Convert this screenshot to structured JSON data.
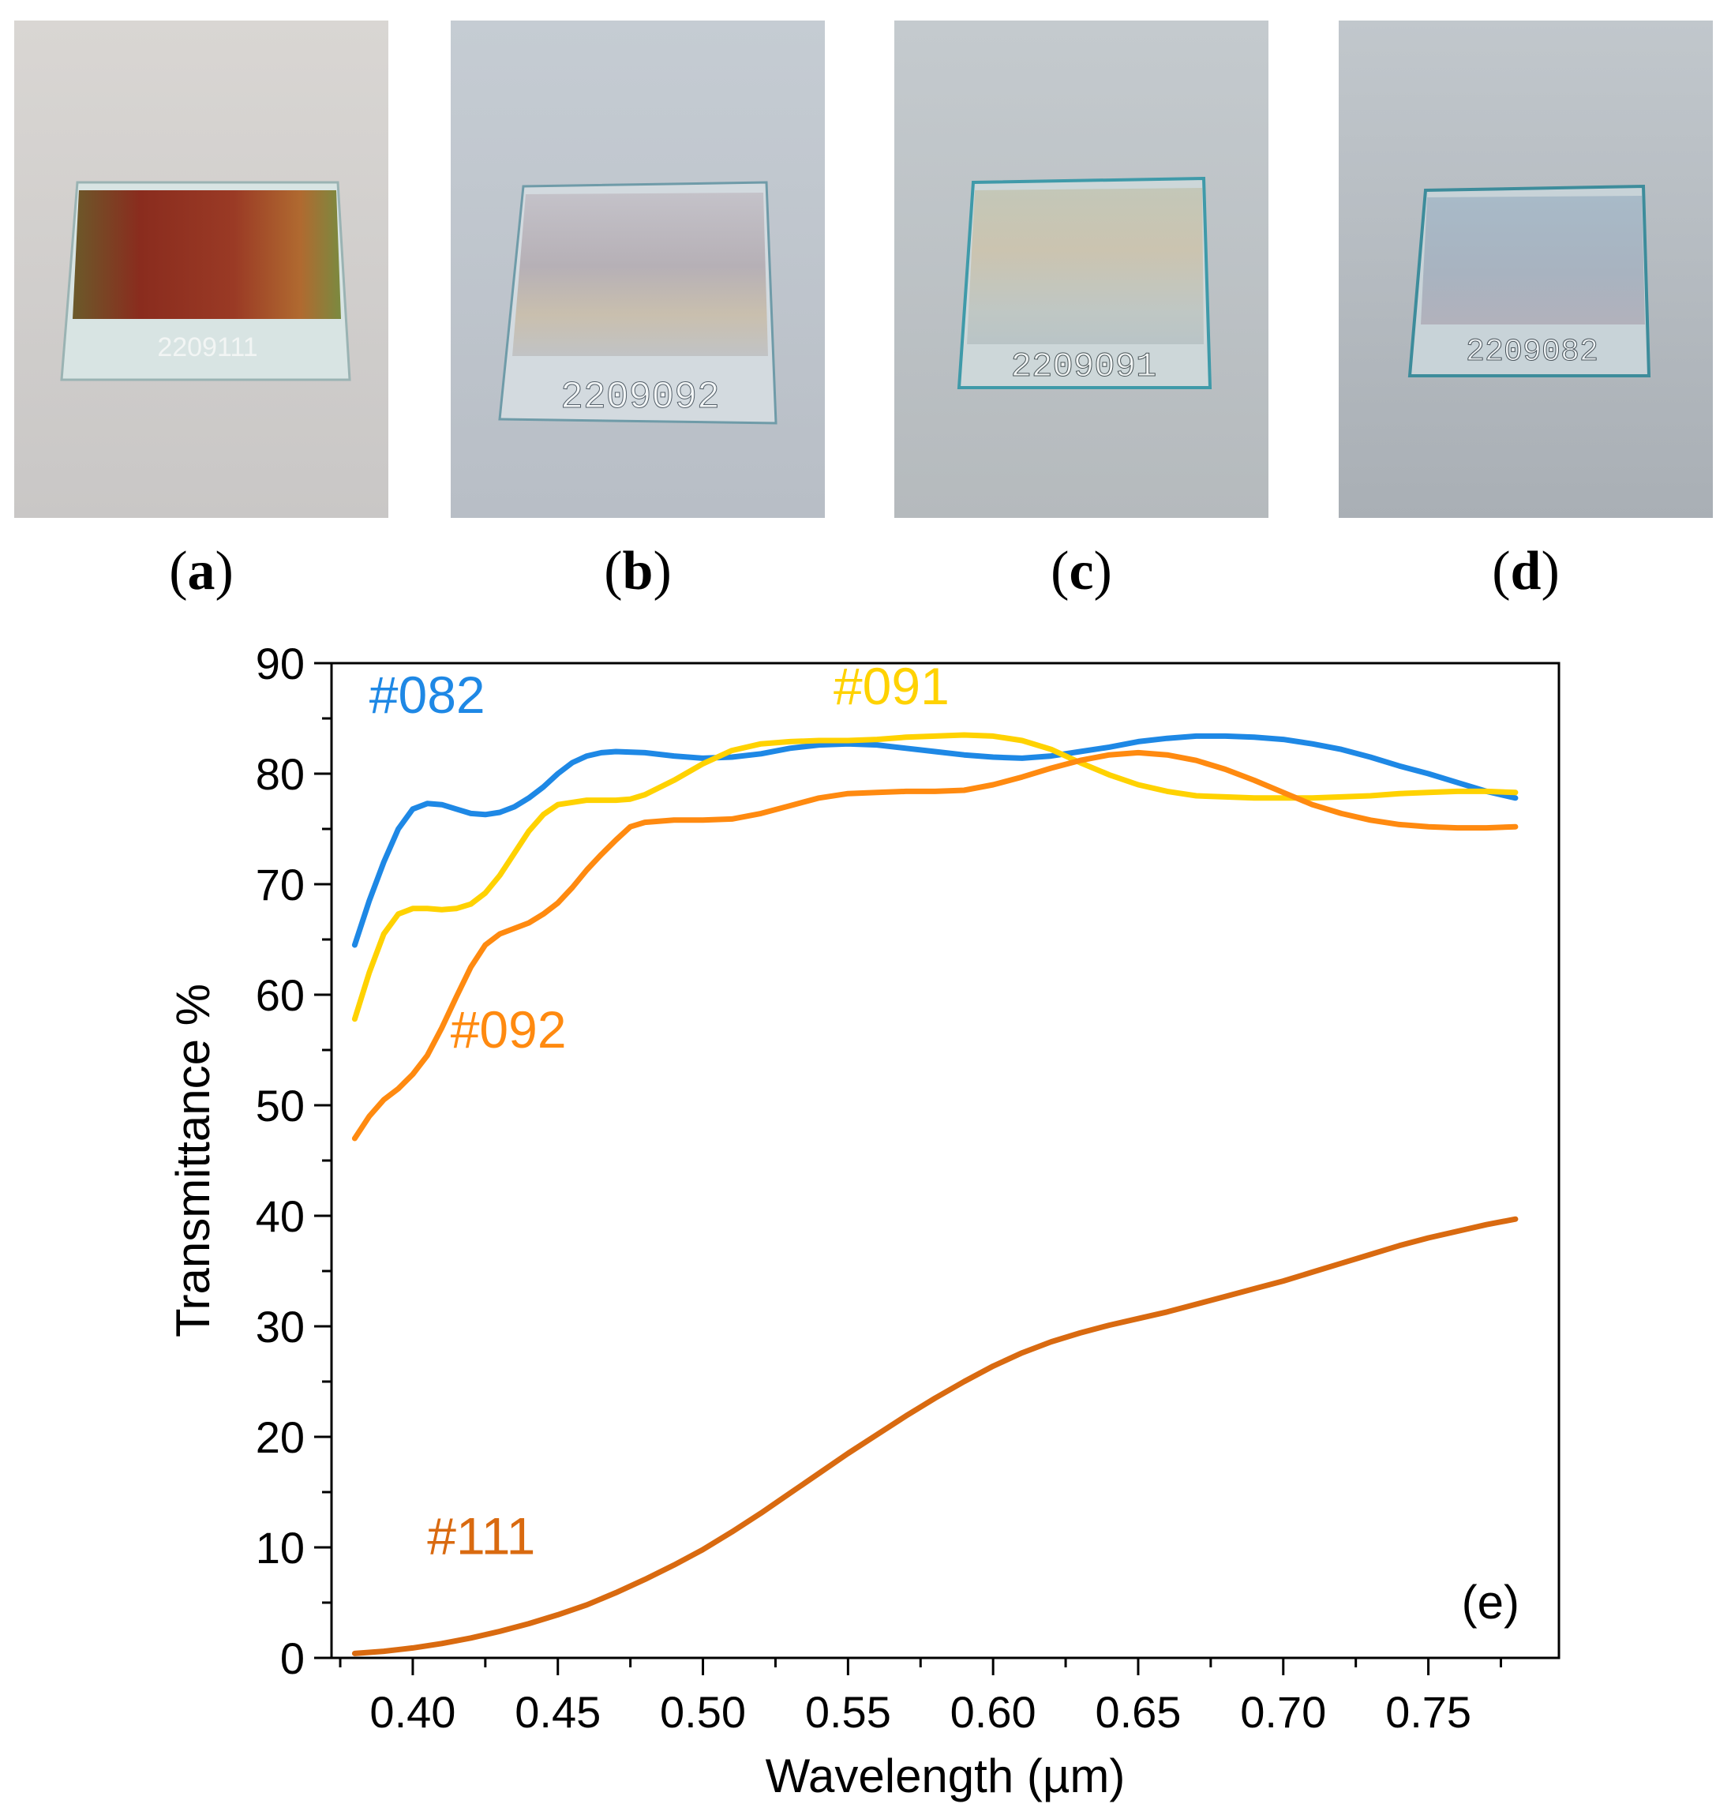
{
  "photos": [
    {
      "id": "a",
      "label_open": "(",
      "label_letter": "a",
      "label_close": ")",
      "engraving": "2209111",
      "film_color": "#8a3a20"
    },
    {
      "id": "b",
      "label_open": "(",
      "label_letter": "b",
      "label_close": ")",
      "engraving": "2209092",
      "film_color": "#b9b4bb"
    },
    {
      "id": "c",
      "label_open": "(",
      "label_letter": "c",
      "label_close": ")",
      "engraving": "2209091",
      "film_color": "#c8c7b6"
    },
    {
      "id": "d",
      "label_open": "(",
      "label_letter": "d",
      "label_close": ")",
      "engraving": "2209082",
      "film_color": "#a9b6c3"
    }
  ],
  "chart_data": {
    "type": "line",
    "panel_label": "(e)",
    "xlabel": "Wavelength (µm)",
    "ylabel": "Transmittance %",
    "xlim": [
      0.372,
      0.795
    ],
    "ylim": [
      0,
      90
    ],
    "xticks": [
      0.4,
      0.45,
      0.5,
      0.55,
      0.6,
      0.65,
      0.7,
      0.75
    ],
    "xtick_labels": [
      "0.40",
      "0.45",
      "0.50",
      "0.55",
      "0.60",
      "0.65",
      "0.70",
      "0.75"
    ],
    "yticks": [
      0,
      10,
      20,
      30,
      40,
      50,
      60,
      70,
      80,
      90
    ],
    "ytick_labels": [
      "0",
      "10",
      "20",
      "30",
      "40",
      "50",
      "60",
      "70",
      "80",
      "90"
    ],
    "grid": false,
    "series": [
      {
        "name": "#082",
        "color": "#1e88e5",
        "x": [
          0.38,
          0.385,
          0.39,
          0.395,
          0.4,
          0.405,
          0.41,
          0.415,
          0.42,
          0.425,
          0.43,
          0.435,
          0.44,
          0.445,
          0.45,
          0.455,
          0.46,
          0.465,
          0.47,
          0.48,
          0.49,
          0.5,
          0.51,
          0.52,
          0.53,
          0.54,
          0.55,
          0.56,
          0.57,
          0.58,
          0.59,
          0.6,
          0.61,
          0.62,
          0.63,
          0.64,
          0.65,
          0.66,
          0.67,
          0.68,
          0.69,
          0.7,
          0.71,
          0.72,
          0.73,
          0.74,
          0.75,
          0.76,
          0.77,
          0.78
        ],
        "y": [
          64.5,
          68.5,
          72,
          75,
          76.8,
          77.3,
          77.2,
          76.8,
          76.4,
          76.3,
          76.5,
          77,
          77.8,
          78.8,
          80,
          81,
          81.6,
          81.9,
          82,
          81.9,
          81.6,
          81.4,
          81.5,
          81.8,
          82.3,
          82.6,
          82.7,
          82.6,
          82.3,
          82,
          81.7,
          81.5,
          81.4,
          81.6,
          82,
          82.4,
          82.9,
          83.2,
          83.4,
          83.4,
          83.3,
          83.1,
          82.7,
          82.2,
          81.5,
          80.7,
          80,
          79.2,
          78.4,
          77.8
        ]
      },
      {
        "name": "#091",
        "color": "#ffd200",
        "x": [
          0.38,
          0.385,
          0.39,
          0.395,
          0.4,
          0.405,
          0.41,
          0.415,
          0.42,
          0.425,
          0.43,
          0.435,
          0.44,
          0.445,
          0.45,
          0.46,
          0.47,
          0.475,
          0.48,
          0.49,
          0.5,
          0.51,
          0.52,
          0.53,
          0.54,
          0.55,
          0.56,
          0.57,
          0.58,
          0.59,
          0.6,
          0.61,
          0.62,
          0.63,
          0.64,
          0.65,
          0.66,
          0.67,
          0.68,
          0.69,
          0.7,
          0.71,
          0.72,
          0.73,
          0.74,
          0.75,
          0.76,
          0.77,
          0.78
        ],
        "y": [
          57.8,
          62,
          65.5,
          67.3,
          67.8,
          67.8,
          67.7,
          67.8,
          68.2,
          69.2,
          70.8,
          72.8,
          74.8,
          76.3,
          77.2,
          77.6,
          77.6,
          77.7,
          78.1,
          79.4,
          80.9,
          82.1,
          82.7,
          82.9,
          83,
          83,
          83.1,
          83.3,
          83.4,
          83.5,
          83.4,
          83,
          82.2,
          81,
          79.9,
          79,
          78.4,
          78,
          77.9,
          77.8,
          77.8,
          77.8,
          77.9,
          78,
          78.2,
          78.3,
          78.4,
          78.4,
          78.3
        ]
      },
      {
        "name": "#092",
        "color": "#ff8a10",
        "x": [
          0.38,
          0.385,
          0.39,
          0.395,
          0.4,
          0.405,
          0.41,
          0.415,
          0.42,
          0.425,
          0.43,
          0.435,
          0.44,
          0.445,
          0.45,
          0.455,
          0.46,
          0.465,
          0.47,
          0.475,
          0.48,
          0.49,
          0.5,
          0.51,
          0.52,
          0.53,
          0.54,
          0.55,
          0.56,
          0.57,
          0.58,
          0.59,
          0.6,
          0.61,
          0.62,
          0.63,
          0.64,
          0.65,
          0.66,
          0.67,
          0.68,
          0.69,
          0.7,
          0.71,
          0.72,
          0.73,
          0.74,
          0.75,
          0.76,
          0.77,
          0.78
        ],
        "y": [
          47,
          49,
          50.5,
          51.5,
          52.8,
          54.5,
          57,
          59.8,
          62.5,
          64.5,
          65.5,
          66,
          66.5,
          67.3,
          68.3,
          69.7,
          71.3,
          72.7,
          74,
          75.2,
          75.6,
          75.8,
          75.8,
          75.9,
          76.4,
          77.1,
          77.8,
          78.2,
          78.3,
          78.4,
          78.4,
          78.5,
          79,
          79.7,
          80.5,
          81.2,
          81.7,
          81.9,
          81.7,
          81.2,
          80.4,
          79.4,
          78.3,
          77.2,
          76.4,
          75.8,
          75.4,
          75.2,
          75.1,
          75.1,
          75.2
        ]
      },
      {
        "name": "#111",
        "color": "#d96a10",
        "x": [
          0.38,
          0.39,
          0.4,
          0.41,
          0.42,
          0.43,
          0.44,
          0.45,
          0.46,
          0.47,
          0.48,
          0.49,
          0.5,
          0.51,
          0.52,
          0.53,
          0.54,
          0.55,
          0.56,
          0.57,
          0.58,
          0.59,
          0.6,
          0.61,
          0.62,
          0.63,
          0.64,
          0.65,
          0.66,
          0.67,
          0.68,
          0.69,
          0.7,
          0.71,
          0.72,
          0.73,
          0.74,
          0.75,
          0.76,
          0.77,
          0.78
        ],
        "y": [
          0.4,
          0.6,
          0.9,
          1.3,
          1.8,
          2.4,
          3.1,
          3.9,
          4.8,
          5.9,
          7.1,
          8.4,
          9.8,
          11.4,
          13.1,
          14.9,
          16.7,
          18.5,
          20.2,
          21.9,
          23.5,
          25,
          26.4,
          27.6,
          28.6,
          29.4,
          30.1,
          30.7,
          31.3,
          32,
          32.7,
          33.4,
          34.1,
          34.9,
          35.7,
          36.5,
          37.3,
          38,
          38.6,
          39.2,
          39.7
        ]
      }
    ],
    "annotations": [
      {
        "text": "#082",
        "series": 0,
        "x": 0.385,
        "y": 85.5
      },
      {
        "text": "#091",
        "series": 1,
        "x": 0.545,
        "y": 86.3
      },
      {
        "text": "#092",
        "series": 2,
        "x": 0.413,
        "y": 55.2
      },
      {
        "text": "#111",
        "series": 3,
        "x": 0.405,
        "y": 9.4
      }
    ]
  }
}
